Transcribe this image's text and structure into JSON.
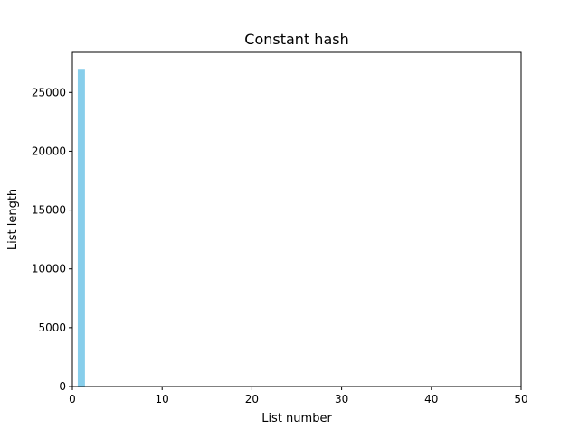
{
  "chart_data": {
    "type": "bar",
    "title": "Constant hash",
    "xlabel": "List number",
    "ylabel": "List length",
    "xlim": [
      0,
      50
    ],
    "ylim": [
      0,
      28400
    ],
    "xticks": [
      0,
      10,
      20,
      30,
      40,
      50
    ],
    "yticks": [
      0,
      5000,
      10000,
      15000,
      20000,
      25000
    ],
    "bars": [
      {
        "x": 1,
        "value": 27000
      }
    ],
    "bar_width": 0.8,
    "bar_color": "#87ceeb",
    "grid": false,
    "legend": null
  }
}
